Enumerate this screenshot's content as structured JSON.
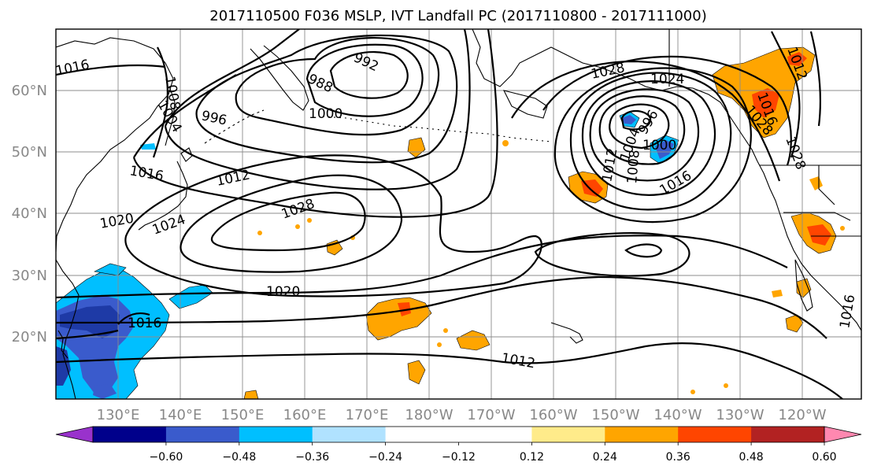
{
  "title": "2017110500 F036 MSLP, IVT Landfall PC (2017110800 - 2017111000)",
  "lon_labels": [
    "130°E",
    "140°E",
    "150°E",
    "160°E",
    "170°E",
    "180°W",
    "170°W",
    "160°W",
    "150°W",
    "140°W",
    "130°W",
    "120°W"
  ],
  "lat_labels": [
    "60°N",
    "50°N",
    "40°N",
    "30°N",
    "20°N"
  ],
  "colorbar": {
    "colors": [
      "#9932cc",
      "#00008b",
      "#3a5bcc",
      "#00bfff",
      "#b0e2ff",
      "#ffffff",
      "#ffffff",
      "#ffeb8a",
      "#ffa500",
      "#ff4500",
      "#b22222",
      "#ff88b0"
    ],
    "tick_labels": [
      "−0.60",
      "−0.48",
      "−0.36",
      "−0.24",
      "−0.12",
      "0.12",
      "0.24",
      "0.36",
      "0.48",
      "0.60"
    ]
  },
  "isobar_labels": [
    "1016",
    "992",
    "988",
    "996",
    "1000",
    "1004",
    "1008",
    "1016",
    "1012",
    "1028",
    "1020",
    "1024",
    "1020",
    "1016",
    "1028",
    "1024",
    "1016",
    "1000",
    "996",
    "1012",
    "1008",
    "1004",
    "1016",
    "1012",
    "1012",
    "1016",
    "1028",
    "1028"
  ]
}
